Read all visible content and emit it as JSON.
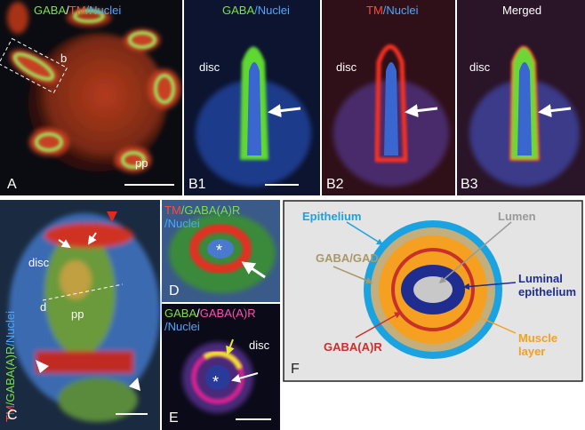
{
  "panel_a": {
    "title_parts": [
      "GABA",
      "/",
      "TM",
      "/Nuclei"
    ],
    "box_label": "b",
    "pp": "pp",
    "label": "A"
  },
  "panel_b1": {
    "title_parts": [
      "GABA",
      "/Nuclei"
    ],
    "disc": "disc",
    "label": "B1"
  },
  "panel_b2": {
    "title_parts": [
      "TM",
      "/Nuclei"
    ],
    "disc": "disc",
    "label": "B2"
  },
  "panel_b3": {
    "title": "Merged",
    "disc": "disc",
    "label": "B3"
  },
  "panel_c": {
    "title_parts": [
      "TM",
      "/GABA(A)R",
      "/Nuclei"
    ],
    "disc": "disc",
    "d": "d",
    "pp": "pp",
    "label": "C"
  },
  "panel_d": {
    "title_parts": [
      "TM",
      "/GABA(A)R"
    ],
    "title_line2": "/Nuclei",
    "star": "*",
    "label": "D"
  },
  "panel_e": {
    "title_parts": [
      "GABA",
      "/",
      "GABA(A)R"
    ],
    "title_line2": "/Nuclei",
    "disc": "disc",
    "star": "*",
    "label": "E"
  },
  "panel_f": {
    "epithelium": "Epithelium",
    "lumen": "Lumen",
    "gaba_gad": "GABA/GAD",
    "luminal_epithelium": [
      "Luminal",
      "epithelium"
    ],
    "gaba_a_r": "GABA(A)R",
    "muscle_layer": [
      "Muscle",
      "layer"
    ],
    "label": "F"
  }
}
